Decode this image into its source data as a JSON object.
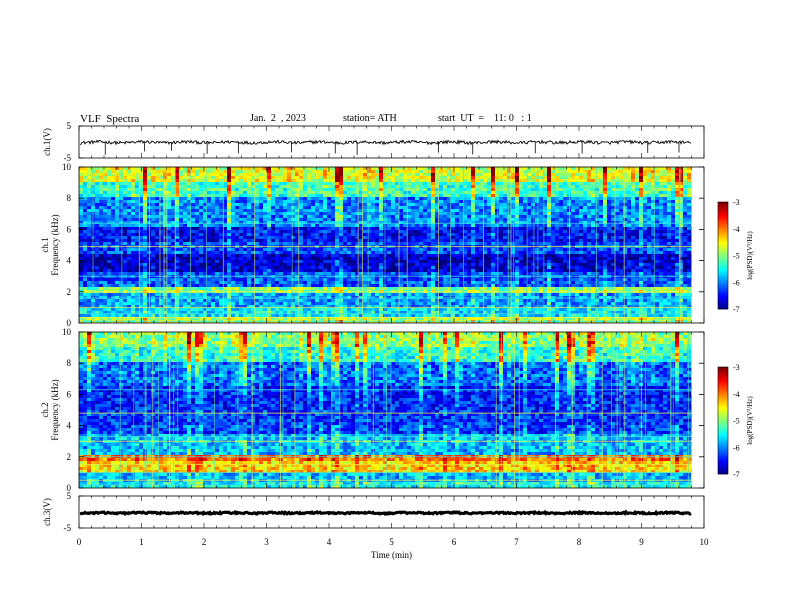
{
  "header": {
    "title": "VLF  Spectra",
    "date": "Jan.  2  , 2023",
    "station": "station= ATH",
    "start": "start  UT  =    11: 0   : 1"
  },
  "chart_data": [
    {
      "type": "line",
      "name": "ch1-waveform",
      "ylabel": "ch.1(V)",
      "yticks": [
        "5",
        "-5"
      ],
      "ylim": [
        -5,
        5
      ],
      "xlim": [
        0,
        10
      ],
      "baseline": -0.1,
      "noise_amplitude": 0.5,
      "spike_times_min": [
        0.42,
        1.05,
        1.48,
        2.05,
        2.55,
        3.4,
        4.1,
        4.45,
        5.75,
        6.3,
        7.3,
        8.05,
        9.1,
        9.6
      ]
    },
    {
      "type": "heatmap",
      "name": "ch1-spectrogram",
      "ylabel": "ch.1\nFrequency  (kHz)",
      "yticks": [
        "0",
        "2",
        "4",
        "6",
        "8",
        "10"
      ],
      "ylim": [
        0,
        10
      ],
      "xlim": [
        0,
        9.8
      ],
      "colorbar": {
        "label": "log(PSD)(V²/Hz)",
        "ticks": [
          "-3",
          "-4",
          "-5",
          "-6",
          "-7"
        ],
        "range": [
          -7,
          -3
        ]
      },
      "background_log_psd": [
        {
          "f_khz": [
            0,
            0.3
          ],
          "level": -4.8
        },
        {
          "f_khz": [
            0.3,
            1.0
          ],
          "level": -5.6
        },
        {
          "f_khz": [
            1.0,
            1.9
          ],
          "level": -5.9
        },
        {
          "f_khz": [
            1.9,
            2.3
          ],
          "level": -5.0
        },
        {
          "f_khz": [
            2.3,
            3.2
          ],
          "level": -6.2
        },
        {
          "f_khz": [
            3.2,
            4.5
          ],
          "level": -6.7
        },
        {
          "f_khz": [
            4.5,
            5.2
          ],
          "level": -6.2
        },
        {
          "f_khz": [
            5.2,
            6.2
          ],
          "level": -6.5
        },
        {
          "f_khz": [
            6.2,
            8.0
          ],
          "level": -6.0
        },
        {
          "f_khz": [
            8.0,
            9.0
          ],
          "level": -5.3
        },
        {
          "f_khz": [
            9.0,
            10.0
          ],
          "level": -4.7
        }
      ],
      "tones_khz": [
        0.1,
        0.35,
        0.6,
        1.0,
        1.6,
        2.0,
        3.0,
        4.9,
        6.4
      ]
    },
    {
      "type": "heatmap",
      "name": "ch2-spectrogram",
      "ylabel": "ch.2\nFrequency  (kHz)",
      "yticks": [
        "0",
        "2",
        "4",
        "6",
        "8",
        "10"
      ],
      "ylim": [
        0,
        10
      ],
      "xlim": [
        0,
        9.8
      ],
      "colorbar": {
        "label": "log(PSD)(V²/Hz)",
        "ticks": [
          "-3",
          "-4",
          "-5",
          "-6",
          "-7"
        ],
        "range": [
          -7,
          -3
        ]
      },
      "background_log_psd": [
        {
          "f_khz": [
            0,
            0.4
          ],
          "level": -5.5
        },
        {
          "f_khz": [
            0.4,
            1.0
          ],
          "level": -5.8
        },
        {
          "f_khz": [
            1.0,
            1.8
          ],
          "level": -4.4
        },
        {
          "f_khz": [
            1.8,
            2.2
          ],
          "level": -4.0
        },
        {
          "f_khz": [
            2.2,
            3.4
          ],
          "level": -5.8
        },
        {
          "f_khz": [
            3.4,
            5.0
          ],
          "level": -6.3
        },
        {
          "f_khz": [
            5.0,
            6.5
          ],
          "level": -6.4
        },
        {
          "f_khz": [
            6.5,
            8.0
          ],
          "level": -6.1
        },
        {
          "f_khz": [
            8.0,
            9.0
          ],
          "level": -5.4
        },
        {
          "f_khz": [
            9.0,
            10.0
          ],
          "level": -5.0
        }
      ],
      "tones_khz": [
        0.2,
        0.5,
        1.0,
        1.5,
        2.0,
        3.0,
        3.3,
        4.8,
        6.3
      ]
    },
    {
      "type": "line",
      "name": "ch3-waveform",
      "ylabel": "ch.3(V)",
      "yticks": [
        "5",
        "-5"
      ],
      "ylim": [
        -5,
        5
      ],
      "xlim": [
        0,
        10
      ],
      "baseline": -0.3,
      "noise_amplitude": 0.25,
      "spike_times_min": []
    }
  ],
  "x_axis": {
    "label": "Time  (min)",
    "ticks": [
      "0",
      "1",
      "2",
      "3",
      "4",
      "5",
      "6",
      "7",
      "8",
      "9",
      "10"
    ],
    "range": [
      0,
      10
    ]
  },
  "colors": {
    "frame": "#000000",
    "trace": "#000000"
  }
}
